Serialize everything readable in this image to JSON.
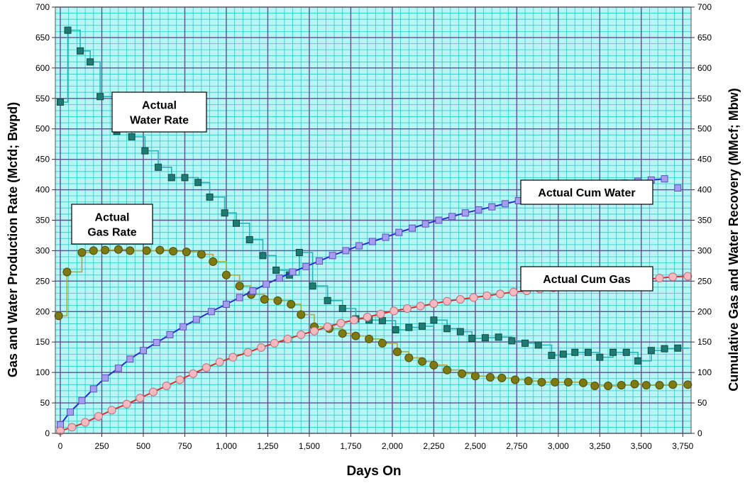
{
  "chart_data": {
    "type": "line",
    "xlabel": "Days On",
    "ylabel_left": "Gas and Water Production Rate (Mcfd; Bwpd)",
    "ylabel_right": "Cumulative Gas and Water Recovery (MMcf; Mbw)",
    "xlim": [
      -30,
      3800
    ],
    "ylim": [
      0,
      700
    ],
    "x_ticks": [
      "0",
      "250",
      "500",
      "750",
      "1,000",
      "1,250",
      "1,500",
      "1,750",
      "2,000",
      "2,250",
      "2,500",
      "2,750",
      "3,000",
      "3,250",
      "3,500",
      "3,750"
    ],
    "y_ticks": [
      "0",
      "50",
      "100",
      "150",
      "200",
      "250",
      "300",
      "350",
      "400",
      "450",
      "500",
      "550",
      "600",
      "650",
      "700"
    ],
    "y_ticks_right": [
      "0",
      "50",
      "100",
      "150",
      "200",
      "250",
      "300",
      "350",
      "400",
      "450",
      "500",
      "550",
      "600",
      "650",
      "700"
    ],
    "grid": true,
    "colors": {
      "background": "#b8f5f5",
      "minor_grid": "#2ec8c8",
      "major_grid": "#5f4f8f",
      "water_rate_line": "#26b5b5",
      "water_rate_marker": "#1f7a73",
      "gas_rate_line": "#a8ad3a",
      "gas_rate_marker": "#7d7a12",
      "cum_water_line": "#2a2ad0",
      "cum_water_marker": "#a59ef0",
      "cum_gas_line": "#e02a2a",
      "cum_gas_marker": "#f6b9c0"
    },
    "annotations": [
      {
        "id": "water-rate",
        "lines": [
          "Actual",
          "Water Rate"
        ]
      },
      {
        "id": "gas-rate",
        "lines": [
          "Actual",
          "Gas Rate"
        ]
      },
      {
        "id": "cum-water",
        "lines": [
          "Actual Cum Water"
        ]
      },
      {
        "id": "cum-gas",
        "lines": [
          "Actual Cum Gas"
        ]
      }
    ],
    "series": [
      {
        "id": "water-rate",
        "marker": "square",
        "x": [
          0,
          45,
          120,
          180,
          240,
          340,
          430,
          510,
          590,
          670,
          750,
          830,
          900,
          990,
          1060,
          1140,
          1220,
          1300,
          1380,
          1440,
          1520,
          1610,
          1700,
          1780,
          1860,
          1940,
          2020,
          2100,
          2180,
          2250,
          2330,
          2410,
          2480,
          2560,
          2640,
          2720,
          2800,
          2880,
          2960,
          3030,
          3100,
          3180,
          3250,
          3330,
          3410,
          3480,
          3560,
          3640,
          3720
        ],
        "y": [
          544,
          662,
          628,
          610,
          553,
          496,
          487,
          464,
          437,
          420,
          420,
          412,
          388,
          362,
          345,
          318,
          292,
          268,
          260,
          297,
          242,
          218,
          205,
          188,
          186,
          185,
          170,
          174,
          176,
          186,
          172,
          167,
          156,
          157,
          158,
          152,
          148,
          145,
          128,
          130,
          133,
          133,
          125,
          133,
          133,
          119,
          136,
          139,
          140
        ]
      },
      {
        "id": "gas-rate",
        "marker": "circle",
        "x": [
          -10,
          40,
          130,
          200,
          270,
          350,
          420,
          520,
          600,
          680,
          760,
          850,
          920,
          1000,
          1080,
          1150,
          1230,
          1310,
          1390,
          1450,
          1530,
          1620,
          1700,
          1780,
          1860,
          1940,
          2030,
          2100,
          2180,
          2250,
          2330,
          2420,
          2500,
          2590,
          2660,
          2740,
          2820,
          2900,
          2980,
          3060,
          3150,
          3220,
          3300,
          3380,
          3460,
          3530,
          3610,
          3690,
          3780
        ],
        "y": [
          193,
          265,
          297,
          300,
          301,
          302,
          300,
          300,
          301,
          299,
          298,
          294,
          282,
          260,
          242,
          228,
          220,
          218,
          212,
          195,
          175,
          172,
          164,
          160,
          155,
          148,
          134,
          124,
          118,
          112,
          104,
          98,
          94,
          92,
          91,
          88,
          86,
          84,
          84,
          84,
          83,
          78,
          78,
          79,
          81,
          79,
          79,
          80,
          80
        ]
      },
      {
        "id": "cum-water",
        "marker": "square",
        "x": [
          0,
          60,
          130,
          200,
          270,
          350,
          420,
          500,
          580,
          660,
          740,
          820,
          910,
          1000,
          1080,
          1160,
          1240,
          1320,
          1400,
          1480,
          1560,
          1640,
          1720,
          1800,
          1880,
          1960,
          2040,
          2120,
          2200,
          2280,
          2360,
          2440,
          2520,
          2600,
          2680,
          2760,
          2840,
          2920,
          3000,
          3080,
          3160,
          3240,
          3320,
          3400,
          3480,
          3560,
          3640,
          3720
        ],
        "y": [
          14,
          35,
          54,
          73,
          91,
          107,
          122,
          136,
          149,
          162,
          175,
          187,
          200,
          212,
          223,
          234,
          245,
          255,
          265,
          274,
          283,
          292,
          300,
          308,
          315,
          322,
          330,
          337,
          344,
          350,
          356,
          362,
          367,
          372,
          377,
          382,
          387,
          391,
          395,
          398,
          402,
          405,
          408,
          411,
          414,
          416,
          418,
          403
        ]
      },
      {
        "id": "cum-gas",
        "marker": "circle",
        "x": [
          0,
          70,
          150,
          230,
          310,
          400,
          480,
          560,
          640,
          720,
          800,
          880,
          960,
          1040,
          1130,
          1210,
          1290,
          1370,
          1450,
          1530,
          1610,
          1690,
          1770,
          1850,
          1930,
          2010,
          2090,
          2170,
          2250,
          2330,
          2410,
          2490,
          2570,
          2650,
          2730,
          2810,
          2890,
          2970,
          3050,
          3130,
          3210,
          3290,
          3370,
          3450,
          3530,
          3610,
          3690,
          3780
        ],
        "y": [
          4,
          10,
          18,
          28,
          38,
          48,
          58,
          68,
          78,
          88,
          98,
          108,
          117,
          125,
          133,
          141,
          148,
          155,
          162,
          168,
          175,
          181,
          186,
          191,
          196,
          201,
          205,
          209,
          213,
          217,
          220,
          223,
          226,
          229,
          232,
          234,
          237,
          239,
          241,
          243,
          245,
          247,
          249,
          251,
          253,
          255,
          257,
          258
        ]
      }
    ]
  }
}
